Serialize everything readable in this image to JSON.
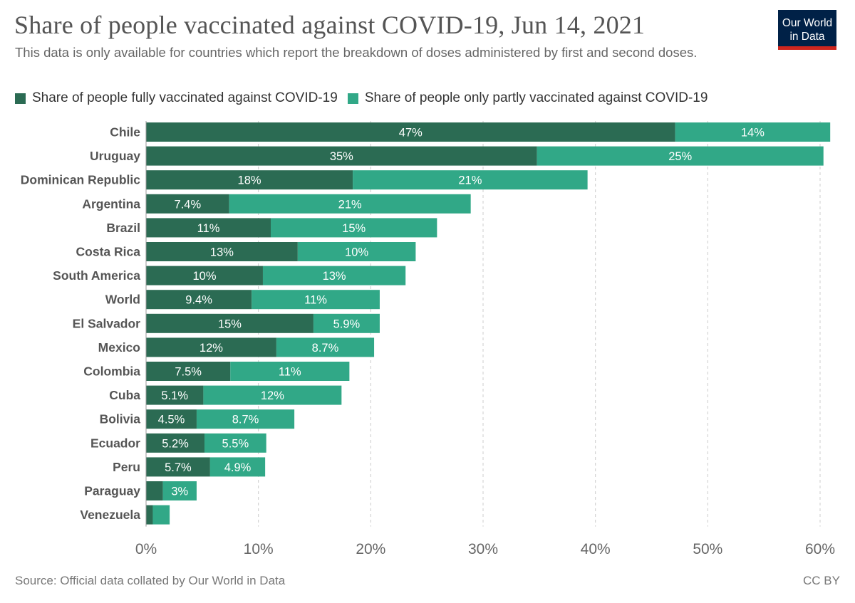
{
  "header": {
    "title": "Share of people vaccinated against COVID-19, Jun 14, 2021",
    "subtitle": "This data is only available for countries which report the breakdown of doses administered by first and second doses.",
    "logo_line1": "Our World",
    "logo_line2": "in Data"
  },
  "footer": {
    "source": "Source: Official data collated by Our World in Data",
    "license": "CC BY"
  },
  "colors": {
    "full": "#2b6b53",
    "partial": "#31a887",
    "grid": "#cccccc",
    "label": "#555555",
    "axis_tick": "#666666"
  },
  "chart_data": {
    "type": "bar",
    "orientation": "horizontal",
    "stacked": true,
    "title": "Share of people vaccinated against COVID-19, Jun 14, 2021",
    "xlim": [
      0,
      60
    ],
    "x_ticks": [
      0,
      10,
      20,
      30,
      40,
      50,
      60
    ],
    "x_tick_labels": [
      "0%",
      "10%",
      "20%",
      "30%",
      "40%",
      "50%",
      "60%"
    ],
    "grid": true,
    "legend_position": "top-left",
    "categories": [
      "Chile",
      "Uruguay",
      "Dominican Republic",
      "Argentina",
      "Brazil",
      "Costa Rica",
      "South America",
      "World",
      "El Salvador",
      "Mexico",
      "Colombia",
      "Cuba",
      "Bolivia",
      "Ecuador",
      "Peru",
      "Paraguay",
      "Venezuela"
    ],
    "series": [
      {
        "name": "Share of people fully vaccinated against COVID-19",
        "values": [
          47.1,
          34.8,
          18.4,
          7.4,
          11.1,
          13.5,
          10.4,
          9.4,
          14.9,
          11.6,
          7.5,
          5.1,
          4.5,
          5.2,
          5.7,
          1.5,
          0.6
        ],
        "labels": [
          "47%",
          "35%",
          "18%",
          "7.4%",
          "11%",
          "13%",
          "10%",
          "9.4%",
          "15%",
          "12%",
          "7.5%",
          "5.1%",
          "4.5%",
          "5.2%",
          "5.7%",
          "",
          ""
        ]
      },
      {
        "name": "Share of people only partly vaccinated against COVID-19",
        "values": [
          13.8,
          25.5,
          20.9,
          21.5,
          14.8,
          10.5,
          12.7,
          11.4,
          5.9,
          8.7,
          10.6,
          12.3,
          8.7,
          5.5,
          4.9,
          3.0,
          1.5
        ],
        "labels": [
          "14%",
          "25%",
          "21%",
          "21%",
          "15%",
          "10%",
          "13%",
          "11%",
          "5.9%",
          "8.7%",
          "11%",
          "12%",
          "8.7%",
          "5.5%",
          "4.9%",
          "3%",
          ""
        ]
      }
    ]
  }
}
